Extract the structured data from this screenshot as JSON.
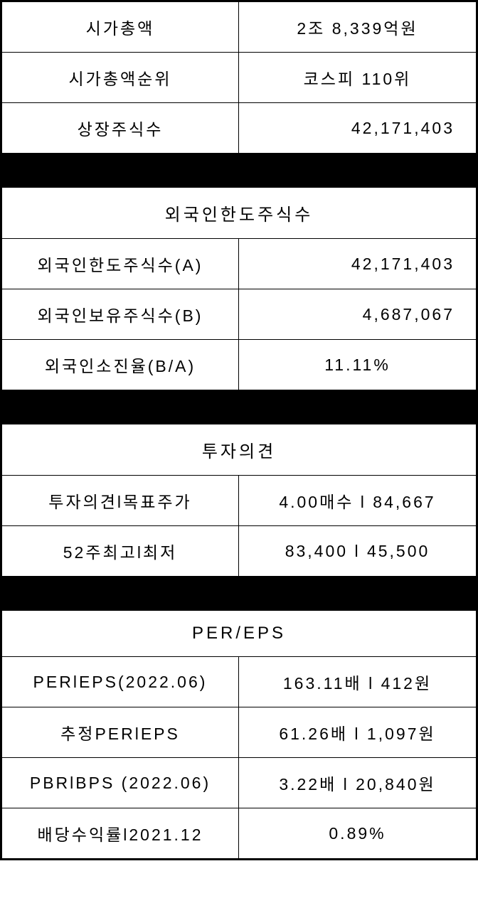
{
  "section1": {
    "rows": [
      {
        "label": "시가총액",
        "value": "2조 8,339억원",
        "align": "center"
      },
      {
        "label": "시가총액순위",
        "value": "코스피 110위",
        "align": "center"
      },
      {
        "label": "상장주식수",
        "value": "42,171,403",
        "align": "right"
      }
    ]
  },
  "section2": {
    "header": "외국인한도주식수",
    "rows": [
      {
        "label": "외국인한도주식수(A)",
        "value": "42,171,403",
        "align": "right"
      },
      {
        "label": "외국인보유주식수(B)",
        "value": "4,687,067",
        "align": "right"
      },
      {
        "label": "외국인소진율(B/A)",
        "value": "11.11%",
        "align": "center"
      }
    ]
  },
  "section3": {
    "header": "투자의견",
    "rows": [
      {
        "label": "투자의견l목표주가",
        "value": "4.00매수 l 84,667",
        "align": "center"
      },
      {
        "label": "52주최고l최저",
        "value": "83,400 l 45,500",
        "align": "center"
      }
    ]
  },
  "section4": {
    "header": "PER/EPS",
    "rows": [
      {
        "label": "PERlEPS(2022.06)",
        "value": "163.11배 l 412원",
        "align": "center"
      },
      {
        "label": "추정PERlEPS",
        "value": "61.26배 l 1,097원",
        "align": "center"
      },
      {
        "label": "PBRlBPS (2022.06)",
        "value": "3.22배 l 20,840원",
        "align": "center"
      },
      {
        "label": "배당수익률l2021.12",
        "value": "0.89%",
        "align": "center"
      }
    ]
  },
  "styling": {
    "border_color": "#000000",
    "outer_border_width": 3,
    "inner_border_width": 1,
    "background_color": "#ffffff",
    "spacer_color": "#000000",
    "font_size": 23,
    "header_font_size": 24,
    "letter_spacing": 3,
    "cell_padding": 18,
    "spacer_height": 48
  }
}
